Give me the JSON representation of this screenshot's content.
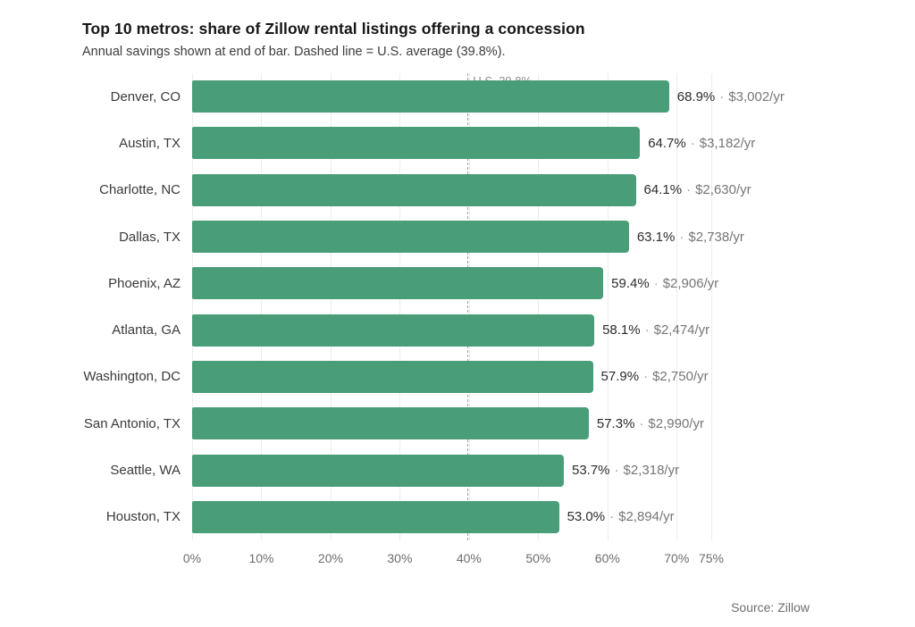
{
  "header": {
    "title": "Top 10 metros: share of Zillow rental listings offering a concession",
    "subtitle": "Annual savings shown at end of bar. Dashed line = U.S. average (39.8%)."
  },
  "source": "Source: Zillow",
  "chart_data": {
    "type": "bar",
    "orientation": "horizontal",
    "title": "Top 10 metros: share of Zillow rental listings offering a concession",
    "subtitle": "Annual savings shown at end of bar. Dashed line = U.S. average (39.8%).",
    "categories": [
      "Denver, CO",
      "Austin, TX",
      "Charlotte, NC",
      "Dallas, TX",
      "Phoenix, AZ",
      "Atlanta, GA",
      "Washington, DC",
      "San Antonio, TX",
      "Seattle, WA",
      "Houston, TX"
    ],
    "values": [
      68.9,
      64.7,
      64.1,
      63.1,
      59.4,
      58.1,
      57.9,
      57.3,
      53.7,
      53.0
    ],
    "value_labels": [
      "68.9%",
      "64.7%",
      "64.1%",
      "63.1%",
      "59.4%",
      "58.1%",
      "57.9%",
      "57.3%",
      "53.7%",
      "53.0%"
    ],
    "savings_labels": [
      "$3,002/yr",
      "$3,182/yr",
      "$2,630/yr",
      "$2,738/yr",
      "$2,906/yr",
      "$2,474/yr",
      "$2,750/yr",
      "$2,990/yr",
      "$2,318/yr",
      "$2,894/yr"
    ],
    "separator": "·",
    "xlim": [
      0,
      75
    ],
    "x_ticks": [
      0,
      10,
      20,
      30,
      40,
      50,
      60,
      70,
      75
    ],
    "x_tick_labels": [
      "0%",
      "10%",
      "20%",
      "30%",
      "40%",
      "50%",
      "60%",
      "70%",
      "75%"
    ],
    "reference_line": {
      "value": 39.8,
      "label": "U.S. 39.8%"
    },
    "bar_color": "#4a9d79",
    "grid": true,
    "gridline_color": "#ececec",
    "legend": false,
    "source": "Source: Zillow"
  }
}
